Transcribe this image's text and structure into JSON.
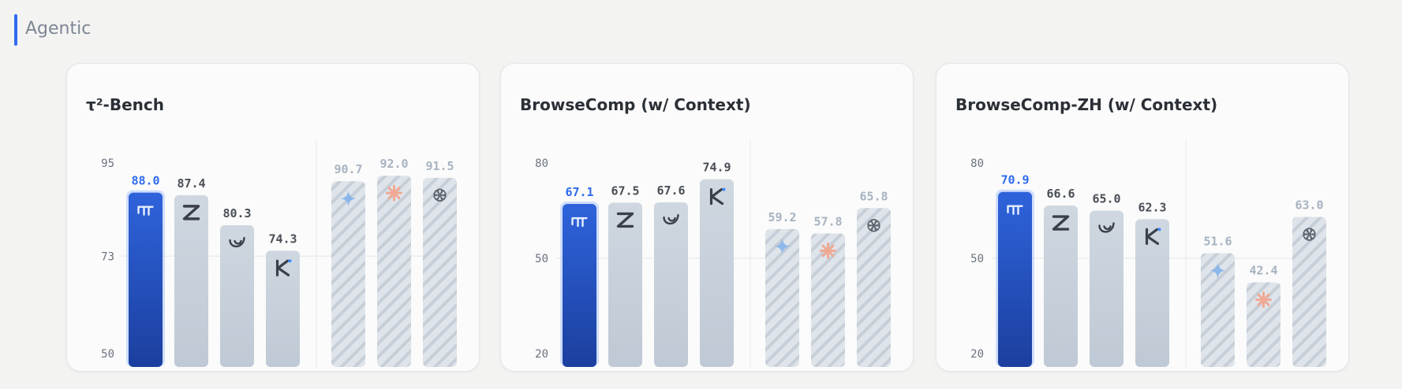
{
  "section": {
    "title": "Agentic",
    "accent": "#2f6bf0"
  },
  "colors": {
    "highlight_top": "#2f63db",
    "highlight_bottom": "#1b3f9e",
    "solid_top": "#cfd7e0",
    "solid_bottom": "#bfc9d5",
    "hatch_base": "#dfe4ea",
    "hatch_line": "#c6ced8",
    "label_highlight": "#2f6bf0",
    "label_solid": "#4a4f57",
    "label_hatched": "#a8b3c2"
  },
  "chart_data": [
    {
      "type": "bar",
      "title": "τ²-Bench",
      "yticks": [
        "95",
        "73",
        "50"
      ],
      "ylim": [
        50,
        95
      ],
      "grid": true,
      "bars": [
        {
          "value": 88.0,
          "label": "88.0",
          "style": "highlight",
          "icon": "bars-logo-icon"
        },
        {
          "value": 87.4,
          "label": "87.4",
          "style": "solid",
          "icon": "z-logo-icon"
        },
        {
          "value": 80.3,
          "label": "80.3",
          "style": "solid",
          "icon": "whale-logo-icon"
        },
        {
          "value": 74.3,
          "label": "74.3",
          "style": "solid",
          "icon": "k-logo-icon"
        },
        {
          "value": 90.7,
          "label": "90.7",
          "style": "hatched",
          "icon": "sparkle-logo-icon"
        },
        {
          "value": 92.0,
          "label": "92.0",
          "style": "hatched",
          "icon": "starburst-logo-icon"
        },
        {
          "value": 91.5,
          "label": "91.5",
          "style": "hatched",
          "icon": "knot-logo-icon"
        }
      ]
    },
    {
      "type": "bar",
      "title": "BrowseComp (w/ Context)",
      "yticks": [
        "80",
        "50",
        "20"
      ],
      "ylim": [
        20,
        80
      ],
      "grid": true,
      "bars": [
        {
          "value": 67.1,
          "label": "67.1",
          "style": "highlight",
          "icon": "bars-logo-icon"
        },
        {
          "value": 67.5,
          "label": "67.5",
          "style": "solid",
          "icon": "z-logo-icon"
        },
        {
          "value": 67.6,
          "label": "67.6",
          "style": "solid",
          "icon": "whale-logo-icon"
        },
        {
          "value": 74.9,
          "label": "74.9",
          "style": "solid",
          "icon": "k-logo-icon"
        },
        {
          "value": 59.2,
          "label": "59.2",
          "style": "hatched",
          "icon": "sparkle-logo-icon"
        },
        {
          "value": 57.8,
          "label": "57.8",
          "style": "hatched",
          "icon": "starburst-logo-icon"
        },
        {
          "value": 65.8,
          "label": "65.8",
          "style": "hatched",
          "icon": "knot-logo-icon"
        }
      ]
    },
    {
      "type": "bar",
      "title": "BrowseComp-ZH (w/ Context)",
      "yticks": [
        "80",
        "50",
        "20"
      ],
      "ylim": [
        20,
        80
      ],
      "grid": true,
      "bars": [
        {
          "value": 70.9,
          "label": "70.9",
          "style": "highlight",
          "icon": "bars-logo-icon"
        },
        {
          "value": 66.6,
          "label": "66.6",
          "style": "solid",
          "icon": "z-logo-icon"
        },
        {
          "value": 65.0,
          "label": "65.0",
          "style": "solid",
          "icon": "whale-logo-icon"
        },
        {
          "value": 62.3,
          "label": "62.3",
          "style": "solid",
          "icon": "k-logo-icon"
        },
        {
          "value": 51.6,
          "label": "51.6",
          "style": "hatched",
          "icon": "sparkle-logo-icon"
        },
        {
          "value": 42.4,
          "label": "42.4",
          "style": "hatched",
          "icon": "starburst-logo-icon"
        },
        {
          "value": 63.0,
          "label": "63.0",
          "style": "hatched",
          "icon": "knot-logo-icon"
        }
      ]
    }
  ]
}
